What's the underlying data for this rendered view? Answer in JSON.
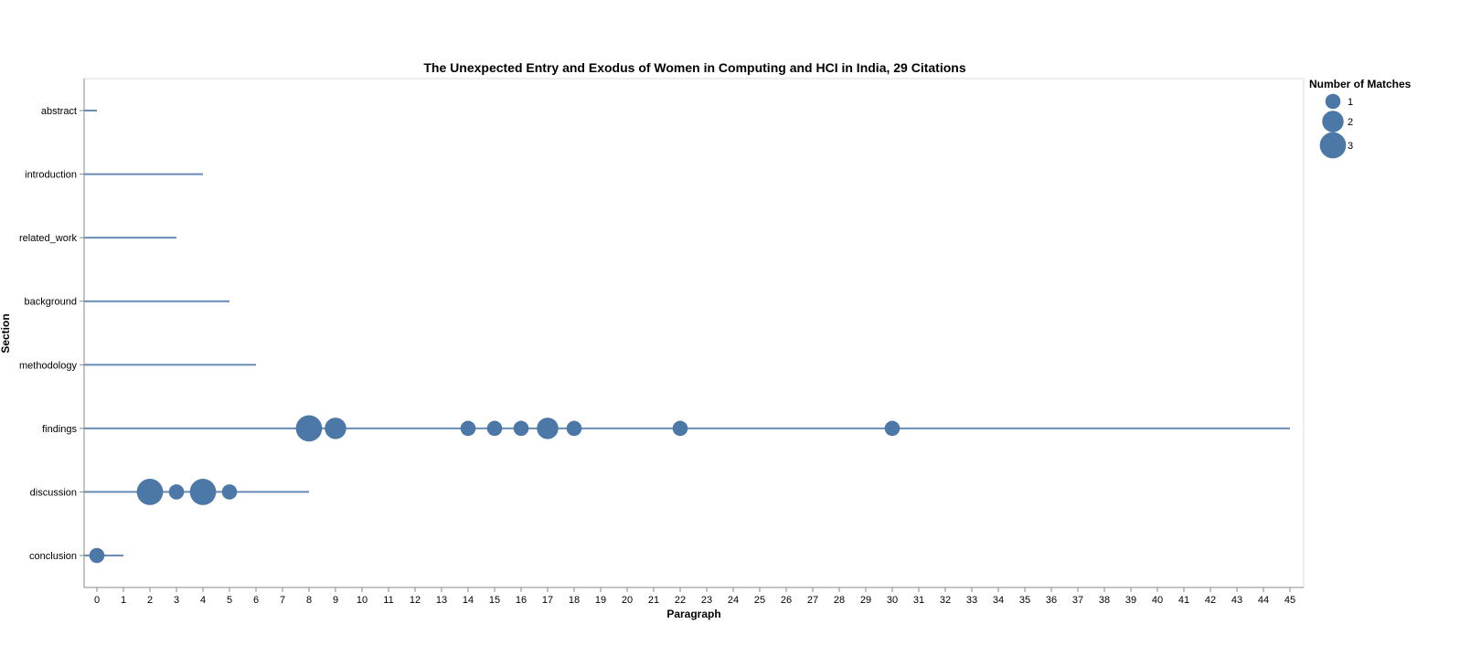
{
  "chart_data": {
    "type": "scatter",
    "title": "The Unexpected Entry and Exodus of Women in Computing and HCI in India, 29 Citations",
    "xlabel": "Paragraph",
    "ylabel": "Section",
    "xlim": [
      0,
      45
    ],
    "x_ticks": [
      0,
      1,
      2,
      3,
      4,
      5,
      6,
      7,
      8,
      9,
      10,
      11,
      12,
      13,
      14,
      15,
      16,
      17,
      18,
      19,
      20,
      21,
      22,
      23,
      24,
      25,
      26,
      27,
      28,
      29,
      30,
      31,
      32,
      33,
      34,
      35,
      36,
      37,
      38,
      39,
      40,
      41,
      42,
      43,
      44,
      45
    ],
    "sections": [
      "abstract",
      "introduction",
      "related_work",
      "background",
      "methodology",
      "findings",
      "discussion",
      "conclusion"
    ],
    "section_lengths": [
      {
        "section": "abstract",
        "max_paragraph": 0
      },
      {
        "section": "introduction",
        "max_paragraph": 4
      },
      {
        "section": "related_work",
        "max_paragraph": 3
      },
      {
        "section": "background",
        "max_paragraph": 5
      },
      {
        "section": "methodology",
        "max_paragraph": 6
      },
      {
        "section": "findings",
        "max_paragraph": 45
      },
      {
        "section": "discussion",
        "max_paragraph": 8
      },
      {
        "section": "conclusion",
        "max_paragraph": 1
      }
    ],
    "points": [
      {
        "section": "findings",
        "paragraph": 8,
        "matches": 3
      },
      {
        "section": "findings",
        "paragraph": 9,
        "matches": 2
      },
      {
        "section": "findings",
        "paragraph": 14,
        "matches": 1
      },
      {
        "section": "findings",
        "paragraph": 15,
        "matches": 1
      },
      {
        "section": "findings",
        "paragraph": 16,
        "matches": 1
      },
      {
        "section": "findings",
        "paragraph": 17,
        "matches": 2
      },
      {
        "section": "findings",
        "paragraph": 18,
        "matches": 1
      },
      {
        "section": "findings",
        "paragraph": 22,
        "matches": 1
      },
      {
        "section": "findings",
        "paragraph": 30,
        "matches": 1
      },
      {
        "section": "discussion",
        "paragraph": 2,
        "matches": 3
      },
      {
        "section": "discussion",
        "paragraph": 3,
        "matches": 1
      },
      {
        "section": "discussion",
        "paragraph": 4,
        "matches": 3
      },
      {
        "section": "discussion",
        "paragraph": 5,
        "matches": 1
      },
      {
        "section": "conclusion",
        "paragraph": 0,
        "matches": 1
      }
    ],
    "legend": {
      "title": "Number of Matches",
      "entries": [
        {
          "label": "1",
          "matches": 1
        },
        {
          "label": "2",
          "matches": 2
        },
        {
          "label": "3",
          "matches": 3
        }
      ],
      "placement": "top-right"
    },
    "colors": {
      "mark": "#4c78a8",
      "line": "#4c78a8",
      "axis": "#888888",
      "frame": "#dddddd"
    },
    "grid": false
  }
}
